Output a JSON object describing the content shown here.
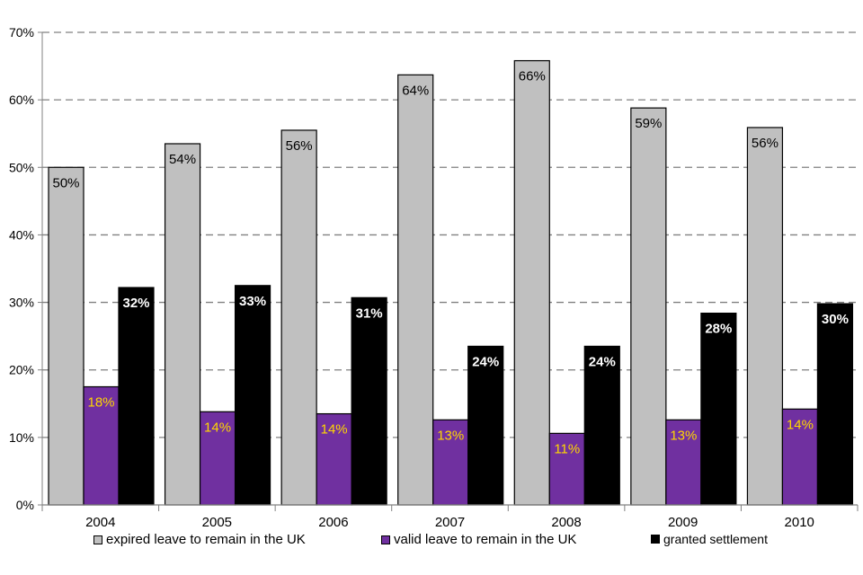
{
  "chart_data": {
    "type": "bar",
    "categories": [
      "2004",
      "2005",
      "2006",
      "2007",
      "2008",
      "2009",
      "2010"
    ],
    "series": [
      {
        "name": "expired leave to remain in the UK",
        "color": "#C0C0C0",
        "label_color": "#000000",
        "values": [
          50,
          53.5,
          55.5,
          63.7,
          65.8,
          58.8,
          55.9
        ],
        "labels": [
          "50%",
          "54%",
          "56%",
          "64%",
          "66%",
          "59%",
          "56%"
        ]
      },
      {
        "name": "valid leave to remain in the UK",
        "color": "#7030A0",
        "label_color": "#FFD700",
        "values": [
          17.5,
          13.8,
          13.5,
          12.6,
          10.6,
          12.6,
          14.2
        ],
        "labels": [
          "18%",
          "14%",
          "14%",
          "13%",
          "11%",
          "13%",
          "14%"
        ]
      },
      {
        "name": "granted settlement",
        "color": "#000000",
        "label_color": "#FFFFFF",
        "values": [
          32.2,
          32.5,
          30.7,
          23.5,
          23.5,
          28.4,
          29.8
        ],
        "labels": [
          "32%",
          "33%",
          "31%",
          "24%",
          "24%",
          "28%",
          "30%"
        ]
      }
    ],
    "ylim": [
      0,
      70
    ],
    "yticks": [
      "0%",
      "10%",
      "20%",
      "30%",
      "40%",
      "50%",
      "60%",
      "70%"
    ],
    "grid": true,
    "legend_position": "bottom"
  }
}
